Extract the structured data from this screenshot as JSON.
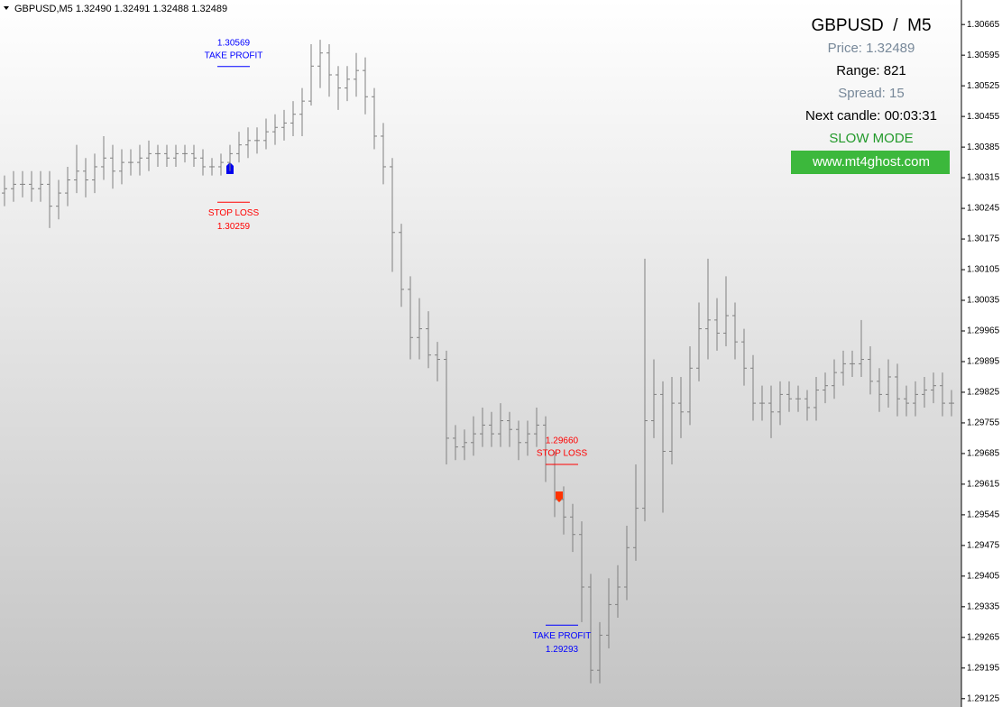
{
  "chart_data": {
    "type": "ohlc",
    "title": "GBPUSD,M5  1.32490 1.32491 1.32488 1.32489",
    "color": "#808080",
    "ylim": [
      1.29106,
      1.30721
    ],
    "yticks": [
      1.30665,
      1.30595,
      1.30525,
      1.30455,
      1.30385,
      1.30315,
      1.30245,
      1.30175,
      1.30105,
      1.30035,
      1.29965,
      1.29895,
      1.29825,
      1.29755,
      1.29685,
      1.29615,
      1.29545,
      1.29475,
      1.29405,
      1.29335,
      1.29265,
      1.29195,
      1.29125
    ],
    "open": [
      1.3028,
      1.3029,
      1.303,
      1.303,
      1.3029,
      1.303,
      1.3025,
      1.3028,
      1.3031,
      1.3033,
      1.3031,
      1.3034,
      1.3036,
      1.3033,
      1.3035,
      1.3035,
      1.3036,
      1.3037,
      1.3037,
      1.3036,
      1.3037,
      1.3037,
      1.3036,
      1.3034,
      1.3034,
      1.3035,
      1.3037,
      1.3039,
      1.304,
      1.304,
      1.3042,
      1.3043,
      1.3044,
      1.3046,
      1.3049,
      1.3057,
      1.306,
      1.3055,
      1.3052,
      1.3054,
      1.3056,
      1.305,
      1.3041,
      1.3034,
      1.3019,
      1.3006,
      1.2995,
      1.2997,
      1.2991,
      1.299,
      1.2972,
      1.297,
      1.2971,
      1.2973,
      1.2975,
      1.2973,
      1.2976,
      1.2974,
      1.2971,
      1.2973,
      1.2975,
      1.2966,
      1.2958,
      1.2954,
      1.295,
      1.2938,
      1.2919,
      1.2927,
      1.2934,
      1.2938,
      1.2947,
      1.2956,
      1.2976,
      1.2982,
      1.2969,
      1.298,
      1.2978,
      1.2988,
      1.2997,
      1.2999,
      1.2996,
      1.3,
      1.2994,
      1.2988,
      1.298,
      1.298,
      1.2978,
      1.2982,
      1.2981,
      1.2981,
      1.2979,
      1.2983,
      1.2984,
      1.2987,
      1.2989,
      1.2989,
      1.299,
      1.2985,
      1.2982,
      1.2986,
      1.2981,
      1.298,
      1.2982,
      1.2983,
      1.2984,
      1.298
    ],
    "high": [
      1.3032,
      1.3033,
      1.3033,
      1.3033,
      1.3033,
      1.3033,
      1.3031,
      1.3034,
      1.3039,
      1.3036,
      1.3037,
      1.3041,
      1.3039,
      1.3038,
      1.3038,
      1.3039,
      1.304,
      1.3039,
      1.3039,
      1.3039,
      1.3039,
      1.3039,
      1.3038,
      1.3036,
      1.3037,
      1.3039,
      1.3042,
      1.3043,
      1.3043,
      1.3045,
      1.3046,
      1.3047,
      1.3049,
      1.3052,
      1.3062,
      1.3063,
      1.3062,
      1.3057,
      1.3057,
      1.306,
      1.3059,
      1.3052,
      1.3044,
      1.3036,
      1.3021,
      1.3009,
      1.3004,
      1.3001,
      1.2994,
      1.2992,
      1.2975,
      1.2974,
      1.2977,
      1.2979,
      1.2978,
      1.298,
      1.2978,
      1.2976,
      1.2976,
      1.2979,
      1.2977,
      1.2969,
      1.2961,
      1.2957,
      1.2953,
      1.2941,
      1.293,
      1.294,
      1.2943,
      1.2952,
      1.2966,
      1.3013,
      1.299,
      1.2985,
      1.2986,
      1.2986,
      1.2993,
      1.3003,
      1.3013,
      1.3004,
      1.3009,
      1.3003,
      1.2997,
      1.2991,
      1.2984,
      1.2984,
      1.2985,
      1.2985,
      1.2984,
      1.2983,
      1.2986,
      1.2987,
      1.299,
      1.2992,
      1.2992,
      1.2999,
      1.2993,
      1.2988,
      1.299,
      1.2989,
      1.2984,
      1.2985,
      1.2986,
      1.2987,
      1.2987,
      1.2983
    ],
    "low": [
      1.3025,
      1.3026,
      1.3027,
      1.3026,
      1.3026,
      1.302,
      1.3022,
      1.3025,
      1.3028,
      1.3027,
      1.3028,
      1.3031,
      1.3029,
      1.303,
      1.3032,
      1.3032,
      1.3033,
      1.3034,
      1.3034,
      1.3034,
      1.3035,
      1.3034,
      1.3032,
      1.3032,
      1.3032,
      1.3033,
      1.3035,
      1.3036,
      1.3037,
      1.3038,
      1.3039,
      1.304,
      1.3041,
      1.3041,
      1.3048,
      1.3052,
      1.305,
      1.3047,
      1.3049,
      1.305,
      1.3046,
      1.3038,
      1.303,
      1.301,
      1.3002,
      1.299,
      1.299,
      1.2988,
      1.2985,
      1.2966,
      1.2967,
      1.2967,
      1.2968,
      1.297,
      1.297,
      1.297,
      1.297,
      1.2967,
      1.2968,
      1.297,
      1.2962,
      1.2954,
      1.295,
      1.2946,
      1.293,
      1.2916,
      1.2916,
      1.2924,
      1.2931,
      1.2935,
      1.2944,
      1.2953,
      1.2972,
      1.2955,
      1.2966,
      1.2972,
      1.2975,
      1.2985,
      1.299,
      1.2992,
      1.2993,
      1.299,
      1.2984,
      1.2976,
      1.2976,
      1.2972,
      1.2975,
      1.2978,
      1.2978,
      1.2976,
      1.2976,
      1.298,
      1.2981,
      1.2984,
      1.2986,
      1.2986,
      1.2982,
      1.2978,
      1.2979,
      1.2977,
      1.2977,
      1.2977,
      1.2979,
      1.298,
      1.2977,
      1.2977
    ],
    "close": [
      1.3029,
      1.303,
      1.303,
      1.3029,
      1.303,
      1.3025,
      1.3028,
      1.3031,
      1.3033,
      1.3031,
      1.3034,
      1.3036,
      1.3033,
      1.3035,
      1.3035,
      1.3036,
      1.3037,
      1.3037,
      1.3036,
      1.3037,
      1.3037,
      1.3036,
      1.3034,
      1.3034,
      1.3035,
      1.3037,
      1.3039,
      1.304,
      1.304,
      1.3042,
      1.3043,
      1.3044,
      1.3046,
      1.3049,
      1.3057,
      1.306,
      1.3055,
      1.3052,
      1.3054,
      1.3056,
      1.305,
      1.3041,
      1.3034,
      1.3019,
      1.3006,
      1.2995,
      1.2997,
      1.2991,
      1.299,
      1.2972,
      1.297,
      1.2971,
      1.2973,
      1.2975,
      1.2973,
      1.2976,
      1.2974,
      1.2971,
      1.2973,
      1.2975,
      1.2966,
      1.2958,
      1.2954,
      1.295,
      1.2938,
      1.2919,
      1.2927,
      1.2934,
      1.2938,
      1.2947,
      1.2956,
      1.2976,
      1.2982,
      1.2969,
      1.298,
      1.2978,
      1.2988,
      1.2997,
      1.2999,
      1.2996,
      1.3,
      1.2994,
      1.2988,
      1.298,
      1.298,
      1.2978,
      1.2982,
      1.2981,
      1.2981,
      1.2979,
      1.2983,
      1.2984,
      1.2987,
      1.2989,
      1.2989,
      1.299,
      1.2985,
      1.2982,
      1.2986,
      1.2981,
      1.298,
      1.2982,
      1.2983,
      1.2984,
      1.298,
      1.298
    ],
    "annotations": [
      {
        "text": "TAKE PROFIT",
        "price": 1.30569,
        "color": "#0000ff"
      },
      {
        "text": "STOP LOSS",
        "price": 1.30259,
        "color": "#ff0000"
      },
      {
        "text": "STOP LOSS",
        "price": {
          "value": 1.2966,
          "label": "1.29660"
        },
        "color": "#ff0000"
      },
      {
        "text": "TAKE PROFIT",
        "price": 1.29293,
        "color": "#0000ff"
      }
    ],
    "panel": [
      "GBPUSD  /  M5",
      "Price: 1.32489",
      "Range: 821",
      "Spread: 15",
      "Next candle: 00:03:31",
      "SLOW MODE",
      "www.mt4ghost.com"
    ]
  }
}
